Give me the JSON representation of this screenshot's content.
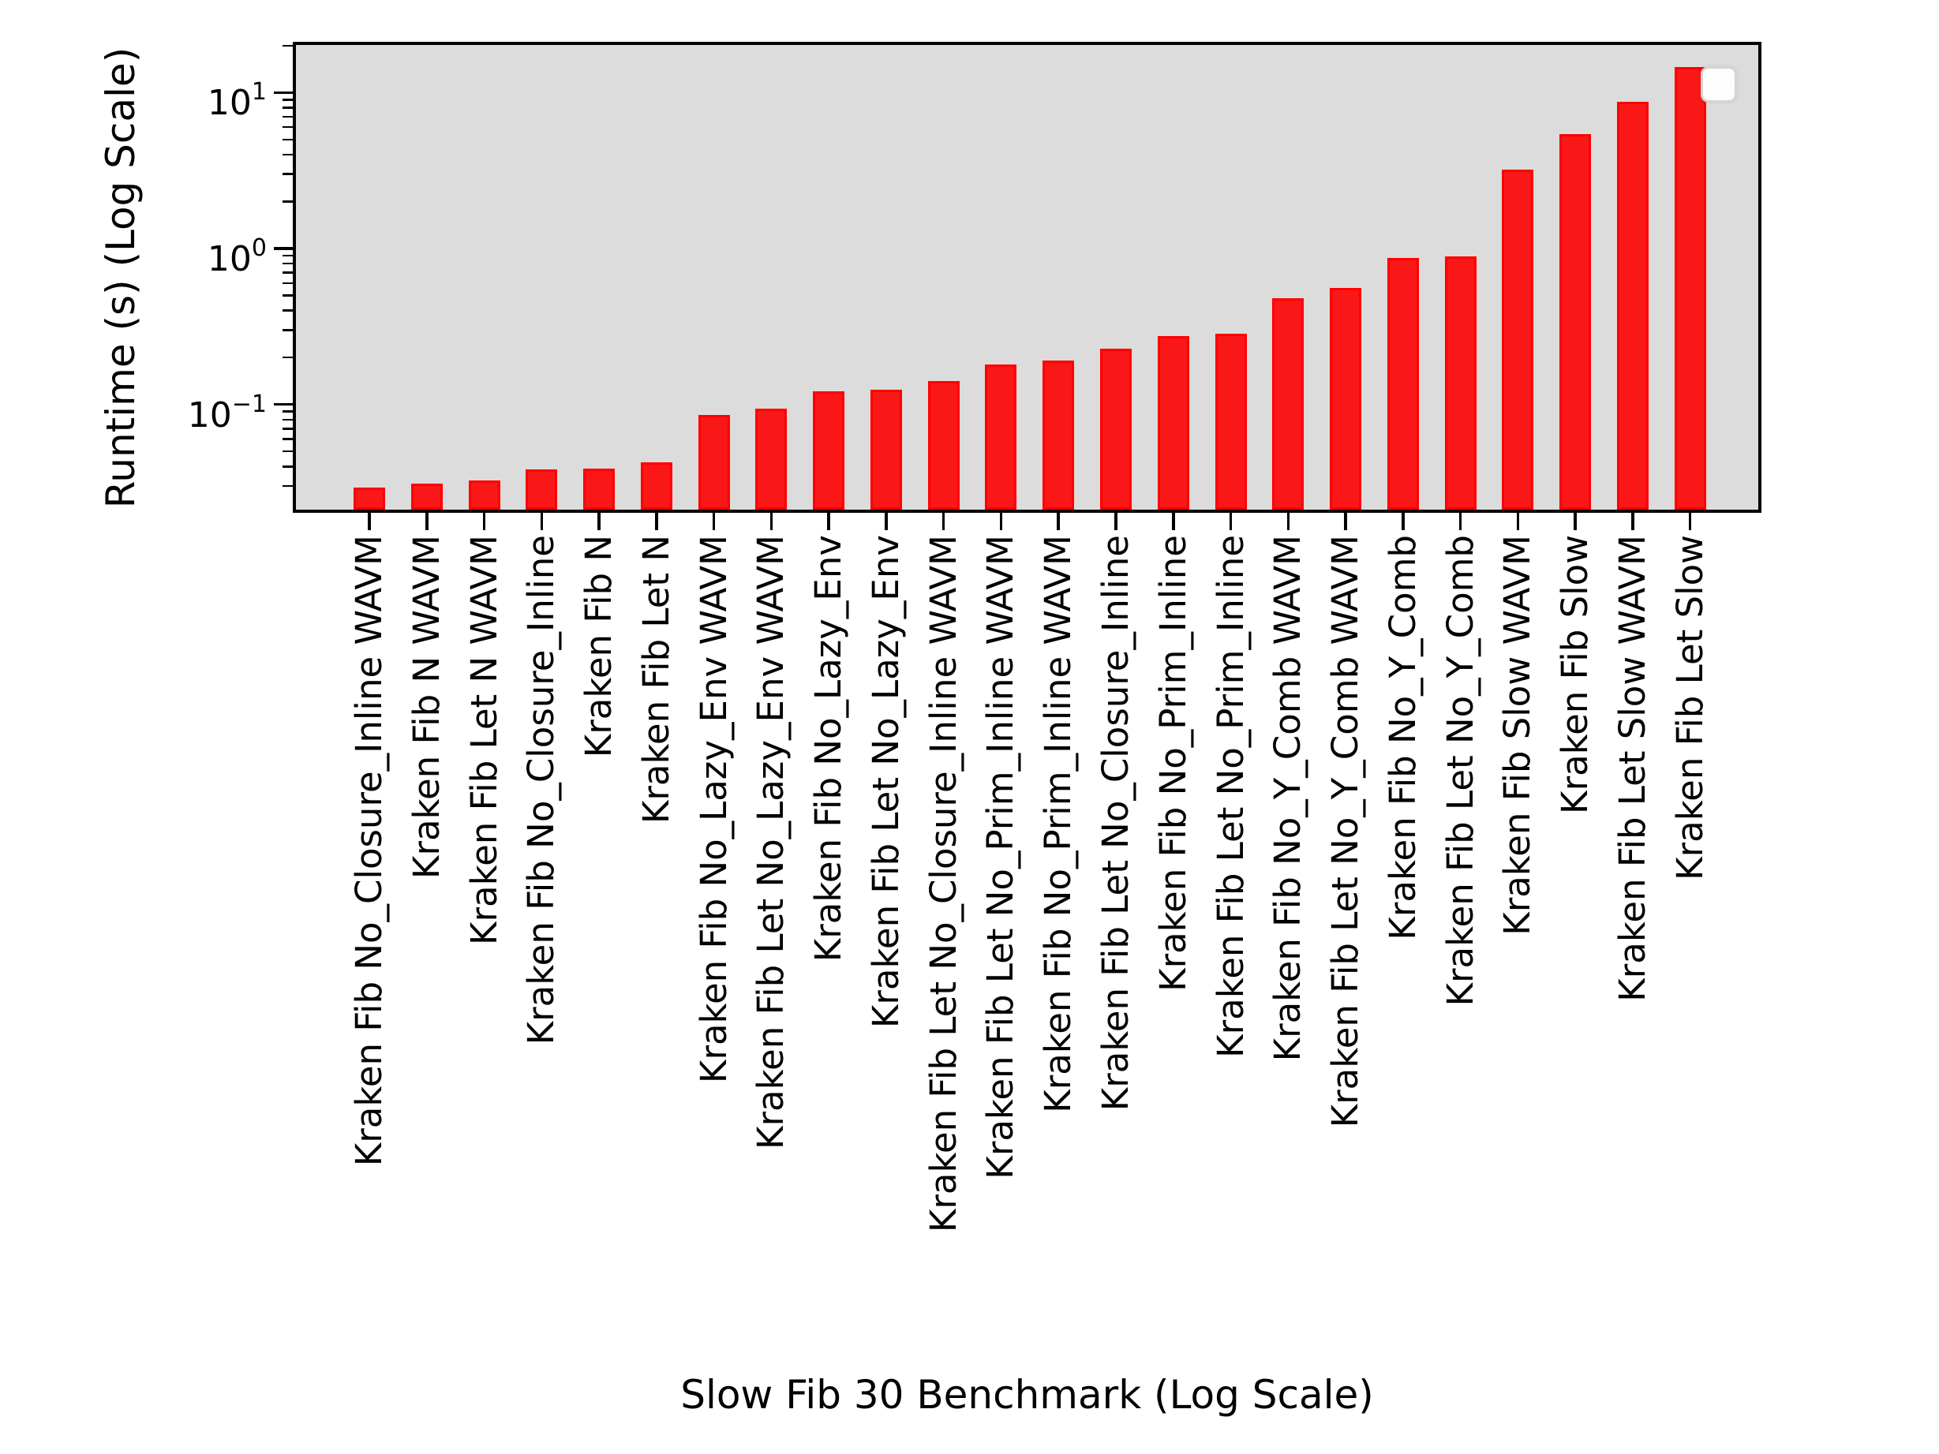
{
  "window": {
    "background": "#ffffff"
  },
  "colors": {
    "bar_fill": "#fa1717",
    "bar_edge": "#ff0000",
    "plot_background": "#dcdcdc",
    "spine": "#000000",
    "text": "#000000",
    "legend_background": "#fdfdfd",
    "legend_border": "#d4d4d4"
  },
  "legend": {
    "present": true,
    "entries": []
  },
  "chart_data": {
    "type": "bar",
    "title": "",
    "xlabel": "Slow Fib 30 Benchmark (Log Scale)",
    "ylabel": "Runtime (s) (Log Scale)",
    "yscale": "log",
    "ylim": [
      0.021,
      20.2
    ],
    "grid": false,
    "legend_position": "upper-right-empty-box",
    "bar_color": "red",
    "categories": [
      "Kraken Fib No_Closure_Inline WAVM",
      "Kraken Fib N WAVM",
      "Kraken Fib Let N WAVM",
      "Kraken Fib No_Closure_Inline",
      "Kraken Fib N",
      "Kraken Fib Let N",
      "Kraken Fib No_Lazy_Env WAVM",
      "Kraken Fib Let No_Lazy_Env WAVM",
      "Kraken Fib No_Lazy_Env",
      "Kraken Fib Let No_Lazy_Env",
      "Kraken Fib Let No_Closure_Inline WAVM",
      "Kraken Fib Let No_Prim_Inline WAVM",
      "Kraken Fib No_Prim_Inline WAVM",
      "Kraken Fib Let No_Closure_Inline",
      "Kraken Fib No_Prim_Inline",
      "Kraken Fib Let No_Prim_Inline",
      "Kraken Fib No_Y_Comb WAVM",
      "Kraken Fib Let No_Y_Comb WAVM",
      "Kraken Fib No_Y_Comb",
      "Kraken Fib Let No_Y_Comb",
      "Kraken Fib Slow WAVM",
      "Kraken Fib Slow",
      "Kraken Fib Let Slow WAVM",
      "Kraken Fib Let Slow"
    ],
    "values": [
      0.0295,
      0.031,
      0.0327,
      0.0384,
      0.0388,
      0.0425,
      0.0857,
      0.0937,
      0.122,
      0.124,
      0.141,
      0.181,
      0.191,
      0.229,
      0.275,
      0.285,
      0.482,
      0.559,
      0.874,
      0.887,
      3.22,
      5.41,
      8.69,
      14.6
    ],
    "yticks_major": [
      {
        "value": 10,
        "label": "10^1",
        "base": "10",
        "exp": "1"
      },
      {
        "value": 1,
        "label": "10^0",
        "base": "10",
        "exp": "0"
      },
      {
        "value": 0.1,
        "label": "10^-1",
        "base": "10",
        "exp": "−1"
      }
    ]
  }
}
